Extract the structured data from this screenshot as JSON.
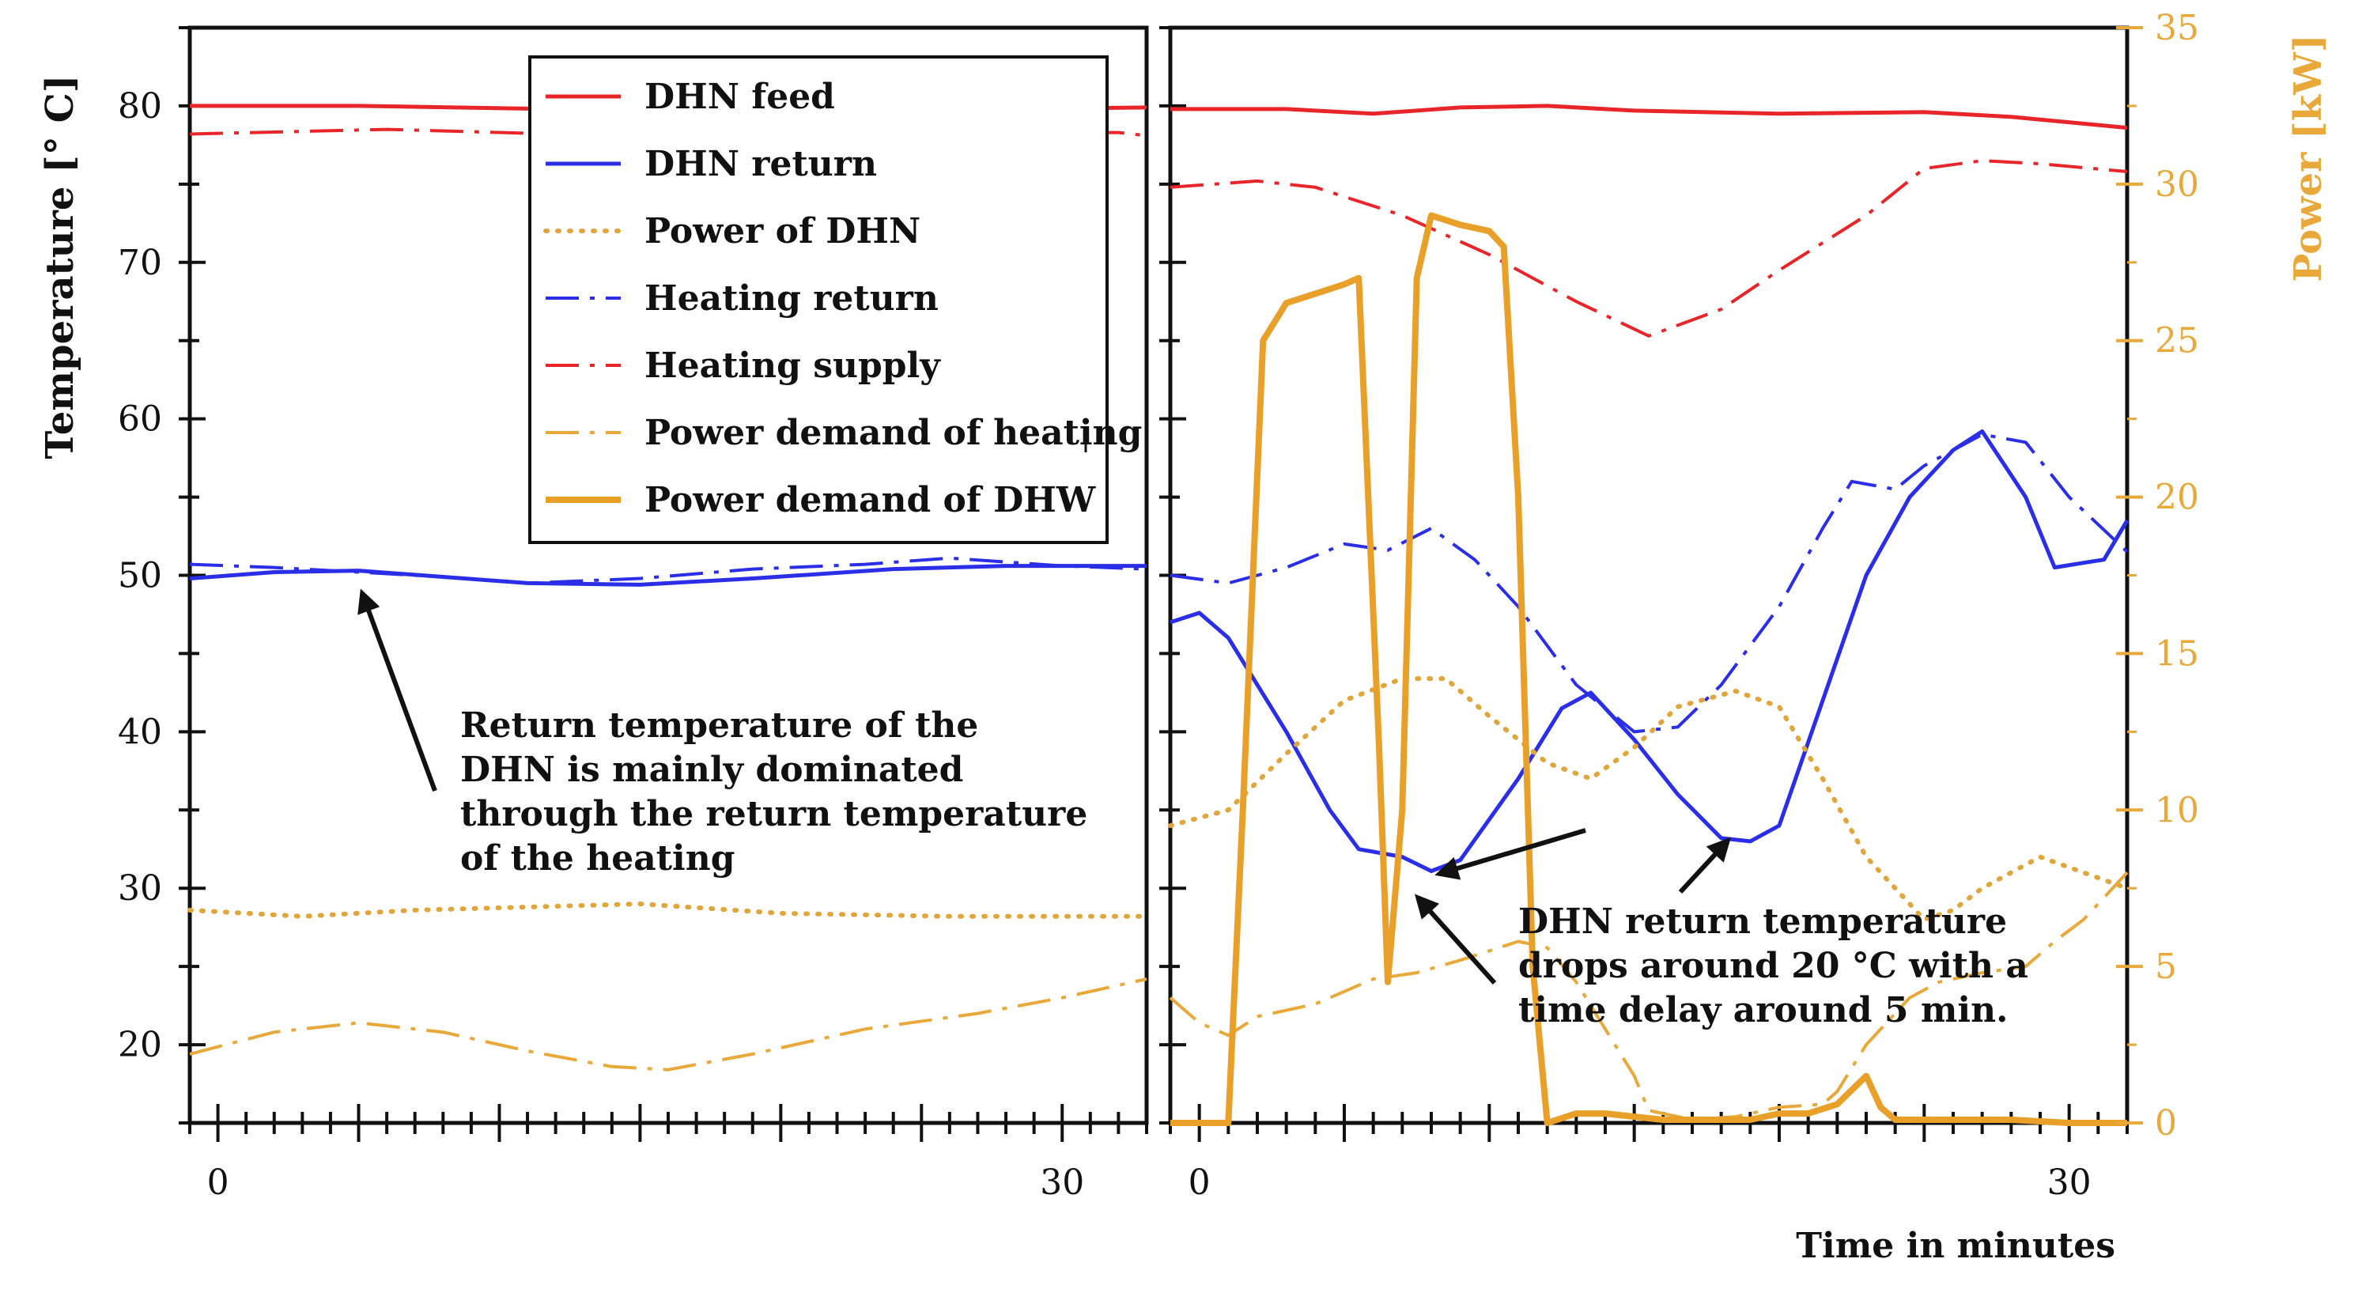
{
  "chart_data": {
    "type": "line",
    "title": "",
    "left_axis": {
      "label": "Temperature [° C]",
      "ylim": [
        15,
        85
      ],
      "ticks": [
        20,
        30,
        40,
        50,
        60,
        70,
        80
      ]
    },
    "right_axis": {
      "label": "Power [kW]",
      "ylim": [
        0,
        35
      ],
      "ticks": [
        0,
        5,
        10,
        15,
        20,
        25,
        30,
        35
      ],
      "color": "#e8a93a"
    },
    "xlabel": "Time in minutes",
    "panels": [
      {
        "name": "left",
        "xlim": [
          -1,
          33
        ],
        "x_ticks": [
          0,
          30
        ],
        "series": [
          {
            "key": "dhn_feed",
            "axis": "left",
            "points": [
              [
                -1,
                80
              ],
              [
                5,
                80
              ],
              [
                12,
                79.8
              ],
              [
                20,
                79.8
              ],
              [
                28,
                79.8
              ],
              [
                33,
                79.9
              ]
            ]
          },
          {
            "key": "heating_supply",
            "axis": "left",
            "points": [
              [
                -1,
                78.2
              ],
              [
                6,
                78.5
              ],
              [
                12,
                78.2
              ],
              [
                20,
                78.1
              ],
              [
                28,
                78.3
              ],
              [
                32,
                78.3
              ],
              [
                33,
                78.1
              ]
            ]
          },
          {
            "key": "dhn_return",
            "axis": "left",
            "points": [
              [
                -1,
                49.8
              ],
              [
                2,
                50.2
              ],
              [
                5,
                50.3
              ],
              [
                8,
                49.9
              ],
              [
                11,
                49.5
              ],
              [
                15,
                49.4
              ],
              [
                19,
                49.8
              ],
              [
                24,
                50.4
              ],
              [
                28,
                50.6
              ],
              [
                33,
                50.6
              ]
            ]
          },
          {
            "key": "heating_return",
            "axis": "left",
            "points": [
              [
                -1,
                50.7
              ],
              [
                2,
                50.5
              ],
              [
                5,
                50.2
              ],
              [
                8,
                49.9
              ],
              [
                11,
                49.5
              ],
              [
                15,
                49.8
              ],
              [
                19,
                50.4
              ],
              [
                23,
                50.7
              ],
              [
                26,
                51.1
              ],
              [
                30,
                50.6
              ],
              [
                33,
                50.4
              ]
            ]
          },
          {
            "key": "power_dhn",
            "axis": "right",
            "points": [
              [
                -1,
                6.8
              ],
              [
                3,
                6.6
              ],
              [
                7,
                6.8
              ],
              [
                11,
                6.9
              ],
              [
                15,
                7.0
              ],
              [
                20,
                6.7
              ],
              [
                26,
                6.6
              ],
              [
                30,
                6.6
              ],
              [
                33,
                6.6
              ]
            ]
          },
          {
            "key": "power_heating",
            "axis": "right",
            "points": [
              [
                -1,
                2.2
              ],
              [
                2,
                2.9
              ],
              [
                5,
                3.2
              ],
              [
                8,
                2.9
              ],
              [
                11,
                2.3
              ],
              [
                14,
                1.8
              ],
              [
                16,
                1.7
              ],
              [
                19,
                2.2
              ],
              [
                23,
                3.0
              ],
              [
                27,
                3.5
              ],
              [
                30,
                4.0
              ],
              [
                33,
                4.6
              ]
            ]
          }
        ]
      },
      {
        "name": "right",
        "xlim": [
          -1,
          32
        ],
        "x_ticks": [
          0,
          30
        ],
        "series": [
          {
            "key": "dhn_feed",
            "axis": "left",
            "points": [
              [
                -1,
                79.8
              ],
              [
                3,
                79.8
              ],
              [
                6,
                79.5
              ],
              [
                9,
                79.9
              ],
              [
                12,
                80
              ],
              [
                15,
                79.7
              ],
              [
                20,
                79.5
              ],
              [
                25,
                79.6
              ],
              [
                28,
                79.3
              ],
              [
                32,
                78.6
              ]
            ]
          },
          {
            "key": "heating_supply",
            "axis": "left",
            "points": [
              [
                -1,
                74.8
              ],
              [
                2,
                75.2
              ],
              [
                4,
                74.8
              ],
              [
                7,
                73
              ],
              [
                10,
                70.5
              ],
              [
                13,
                67.5
              ],
              [
                15.5,
                65.3
              ],
              [
                18,
                67
              ],
              [
                20,
                69.5
              ],
              [
                23,
                73
              ],
              [
                25,
                76
              ],
              [
                27,
                76.5
              ],
              [
                29,
                76.3
              ],
              [
                32,
                75.8
              ]
            ]
          },
          {
            "key": "dhn_return",
            "axis": "left",
            "points": [
              [
                -1,
                47
              ],
              [
                0,
                47.6
              ],
              [
                1,
                46
              ],
              [
                3,
                40
              ],
              [
                4.5,
                35
              ],
              [
                5.5,
                32.5
              ],
              [
                7,
                32
              ],
              [
                8,
                31.1
              ],
              [
                9,
                31.8
              ],
              [
                11,
                37
              ],
              [
                12.5,
                41.5
              ],
              [
                13.5,
                42.5
              ],
              [
                15,
                39.5
              ],
              [
                16.5,
                36
              ],
              [
                18,
                33.2
              ],
              [
                19,
                33
              ],
              [
                20,
                34
              ],
              [
                21.5,
                42
              ],
              [
                23,
                50
              ],
              [
                24.5,
                55
              ],
              [
                26,
                58
              ],
              [
                27,
                59.2
              ],
              [
                28.5,
                55
              ],
              [
                29.5,
                50.5
              ],
              [
                30.5,
                50.8
              ],
              [
                31.2,
                51
              ],
              [
                32,
                53.5
              ]
            ]
          },
          {
            "key": "heating_return",
            "axis": "left",
            "points": [
              [
                -1,
                50
              ],
              [
                1,
                49.5
              ],
              [
                3,
                50.5
              ],
              [
                5,
                52
              ],
              [
                6.5,
                51.6
              ],
              [
                8,
                53
              ],
              [
                9.5,
                51
              ],
              [
                11,
                48
              ],
              [
                13,
                43
              ],
              [
                15,
                40
              ],
              [
                16.5,
                40.3
              ],
              [
                18,
                43
              ],
              [
                20,
                48
              ],
              [
                21.5,
                53
              ],
              [
                22.5,
                56
              ],
              [
                24,
                55.5
              ],
              [
                25,
                57
              ],
              [
                27,
                59
              ],
              [
                28.5,
                58.5
              ],
              [
                30,
                55
              ],
              [
                32,
                51.5
              ]
            ]
          },
          {
            "key": "power_dhn",
            "axis": "right",
            "points": [
              [
                -1,
                9.5
              ],
              [
                1,
                10
              ],
              [
                3,
                11.8
              ],
              [
                5,
                13.5
              ],
              [
                7,
                14.2
              ],
              [
                8.5,
                14.2
              ],
              [
                10,
                13
              ],
              [
                12,
                11.5
              ],
              [
                13.5,
                11
              ],
              [
                15,
                12
              ],
              [
                16.5,
                13.3
              ],
              [
                18.5,
                13.8
              ],
              [
                20,
                13.3
              ],
              [
                21.5,
                11
              ],
              [
                23,
                8.5
              ],
              [
                25,
                6.5
              ],
              [
                26,
                6.8
              ],
              [
                27,
                7.5
              ],
              [
                29,
                8.5
              ],
              [
                30.5,
                8
              ],
              [
                32,
                7.5
              ]
            ]
          },
          {
            "key": "power_heating",
            "axis": "right",
            "points": [
              [
                -1,
                4
              ],
              [
                0,
                3.2
              ],
              [
                1,
                2.8
              ],
              [
                2,
                3.4
              ],
              [
                4,
                3.8
              ],
              [
                6,
                4.6
              ],
              [
                7.5,
                4.8
              ],
              [
                9,
                5.2
              ],
              [
                11,
                5.8
              ],
              [
                12,
                5.6
              ],
              [
                13,
                4.5
              ],
              [
                14,
                3
              ],
              [
                15,
                1.5
              ],
              [
                15.5,
                0.4
              ],
              [
                17,
                0.1
              ],
              [
                18.5,
                0.2
              ],
              [
                20,
                0.5
              ],
              [
                21.5,
                0.6
              ],
              [
                22,
                1
              ],
              [
                23,
                2.5
              ],
              [
                24.5,
                4
              ],
              [
                25.5,
                4.5
              ],
              [
                27,
                4.8
              ],
              [
                28.5,
                5
              ],
              [
                29.5,
                5.8
              ],
              [
                30.5,
                6.5
              ],
              [
                32,
                8
              ]
            ]
          },
          {
            "key": "power_dhw",
            "axis": "right",
            "points": [
              [
                -1,
                0
              ],
              [
                0.5,
                0
              ],
              [
                1,
                0
              ],
              [
                1.5,
                10
              ],
              [
                2.2,
                25
              ],
              [
                3,
                26.2
              ],
              [
                4,
                26.5
              ],
              [
                5,
                26.8
              ],
              [
                5.5,
                27
              ],
              [
                6.2,
                12
              ],
              [
                6.5,
                4.5
              ],
              [
                7,
                10
              ],
              [
                7.5,
                27
              ],
              [
                8,
                29
              ],
              [
                9,
                28.7
              ],
              [
                10,
                28.5
              ],
              [
                10.5,
                28
              ],
              [
                11,
                20
              ],
              [
                11.5,
                5
              ],
              [
                12,
                0
              ],
              [
                13,
                0.3
              ],
              [
                14,
                0.3
              ],
              [
                15,
                0.2
              ],
              [
                16,
                0.1
              ],
              [
                17,
                0.1
              ],
              [
                18,
                0.1
              ],
              [
                19,
                0.1
              ],
              [
                20,
                0.3
              ],
              [
                21,
                0.3
              ],
              [
                22,
                0.6
              ],
              [
                23,
                1.5
              ],
              [
                23.5,
                0.5
              ],
              [
                24,
                0.1
              ],
              [
                26,
                0.1
              ],
              [
                28,
                0.1
              ],
              [
                30,
                0
              ],
              [
                32,
                0
              ]
            ]
          }
        ]
      }
    ],
    "legend": {
      "position": "top-center",
      "items": [
        {
          "key": "dhn_feed",
          "label": "DHN feed"
        },
        {
          "key": "dhn_return",
          "label": "DHN return"
        },
        {
          "key": "power_dhn",
          "label": "Power of DHN"
        },
        {
          "key": "heating_return",
          "label": "Heating return"
        },
        {
          "key": "heating_supply",
          "label": "Heating supply"
        },
        {
          "key": "power_heating",
          "label": "Power demand of heating"
        },
        {
          "key": "power_dhw",
          "label": "Power demand of DHW"
        }
      ]
    },
    "styles": {
      "dhn_feed": {
        "color": "#e8262a",
        "dash": "solid"
      },
      "dhn_return": {
        "color": "#2a2ee6",
        "dash": "solid"
      },
      "power_dhn": {
        "color": "#e0a63c",
        "dash": "dotted"
      },
      "heating_return": {
        "color": "#2a2ee6",
        "dash": "dashdot"
      },
      "heating_supply": {
        "color": "#e8262a",
        "dash": "dashdot"
      },
      "power_heating": {
        "color": "#e8a93a",
        "dash": "dashdot"
      },
      "power_dhw": {
        "color": "#e8a028",
        "dash": "thick"
      }
    },
    "annotations": [
      {
        "key": "left_note",
        "lines": [
          "Return temperature of the",
          "DHN is mainly dominated",
          "through the return temperature",
          "of the heating"
        ]
      },
      {
        "key": "right_note",
        "lines": [
          "DHN return temperature",
          "drops around 20 °C with a",
          "time delay around 5 min."
        ]
      }
    ]
  }
}
